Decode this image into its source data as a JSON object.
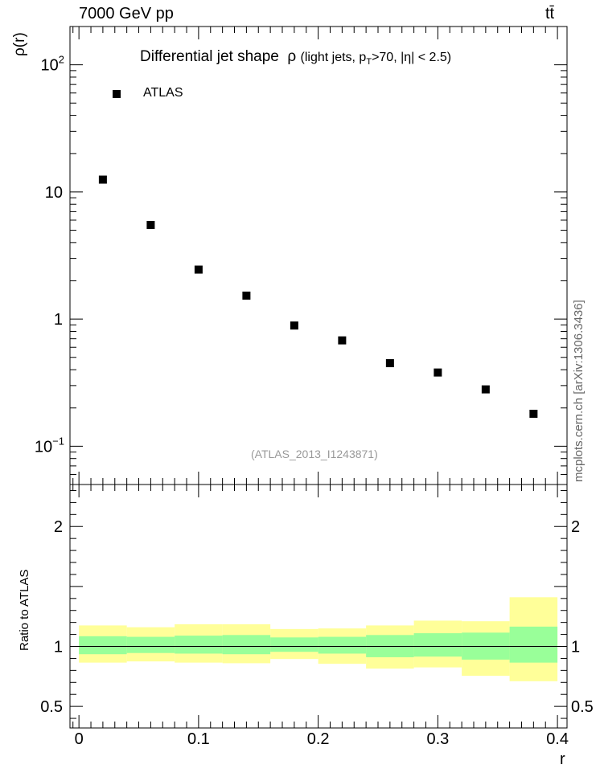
{
  "header": {
    "energy_label": "7000 GeV pp",
    "process_label": "tt̄",
    "side_label": "mcplots.cern.ch [arXiv:1306.3436]"
  },
  "chart_data": {
    "type": "scatter",
    "title": "Differential jet shape  ρ (light jets, pT>70, |η| < 2.5)",
    "watermark": "(ATLAS_2013_I1243871)",
    "main": {
      "ylabel": "ρ(r)",
      "yscale": "log",
      "ylim": [
        0.05,
        200
      ],
      "xlim": [
        -0.0075,
        0.408
      ],
      "yticks": [
        {
          "value": 0.1,
          "base": "10",
          "exp": "−1"
        },
        {
          "value": 1,
          "base": "1",
          "exp": ""
        },
        {
          "value": 10,
          "base": "10",
          "exp": ""
        },
        {
          "value": 100,
          "base": "10",
          "exp": "2"
        }
      ],
      "legend": {
        "placement": "top-left",
        "entries": [
          "ATLAS"
        ]
      },
      "series": [
        {
          "name": "ATLAS",
          "color": "#000000",
          "x": [
            0.02,
            0.06,
            0.1,
            0.14,
            0.18,
            0.22,
            0.26,
            0.3,
            0.34,
            0.38
          ],
          "y": [
            12.5,
            5.5,
            2.45,
            1.53,
            0.89,
            0.68,
            0.45,
            0.38,
            0.28,
            0.18
          ]
        }
      ]
    },
    "ratio": {
      "ylabel": "Ratio to ATLAS",
      "ylim": [
        0.32,
        2.35
      ],
      "yticks": [
        0.5,
        1,
        2
      ],
      "ytick_labels": [
        "0.5",
        "1",
        "2"
      ],
      "xticks": [
        0,
        0.1,
        0.2,
        0.3,
        0.4
      ],
      "xtick_labels": [
        "0",
        "0.1",
        "0.2",
        "0.3",
        "0.4"
      ],
      "xlabel": "r",
      "bins": [
        0.0,
        0.04,
        0.08,
        0.12,
        0.16,
        0.2,
        0.24,
        0.28,
        0.32,
        0.36,
        0.4
      ],
      "band_stat_color": "#99ff99",
      "band_total_color": "#ffff99",
      "inner_band": [
        [
          0.935,
          1.085
        ],
        [
          0.945,
          1.08
        ],
        [
          0.94,
          1.09
        ],
        [
          0.935,
          1.095
        ],
        [
          0.955,
          1.075
        ],
        [
          0.94,
          1.08
        ],
        [
          0.91,
          1.095
        ],
        [
          0.915,
          1.11
        ],
        [
          0.89,
          1.115
        ],
        [
          0.865,
          1.165
        ]
      ],
      "outer_band": [
        [
          0.865,
          1.175
        ],
        [
          0.875,
          1.16
        ],
        [
          0.865,
          1.185
        ],
        [
          0.86,
          1.185
        ],
        [
          0.895,
          1.145
        ],
        [
          0.855,
          1.15
        ],
        [
          0.815,
          1.175
        ],
        [
          0.825,
          1.215
        ],
        [
          0.755,
          1.21
        ],
        [
          0.71,
          1.41
        ]
      ]
    }
  }
}
